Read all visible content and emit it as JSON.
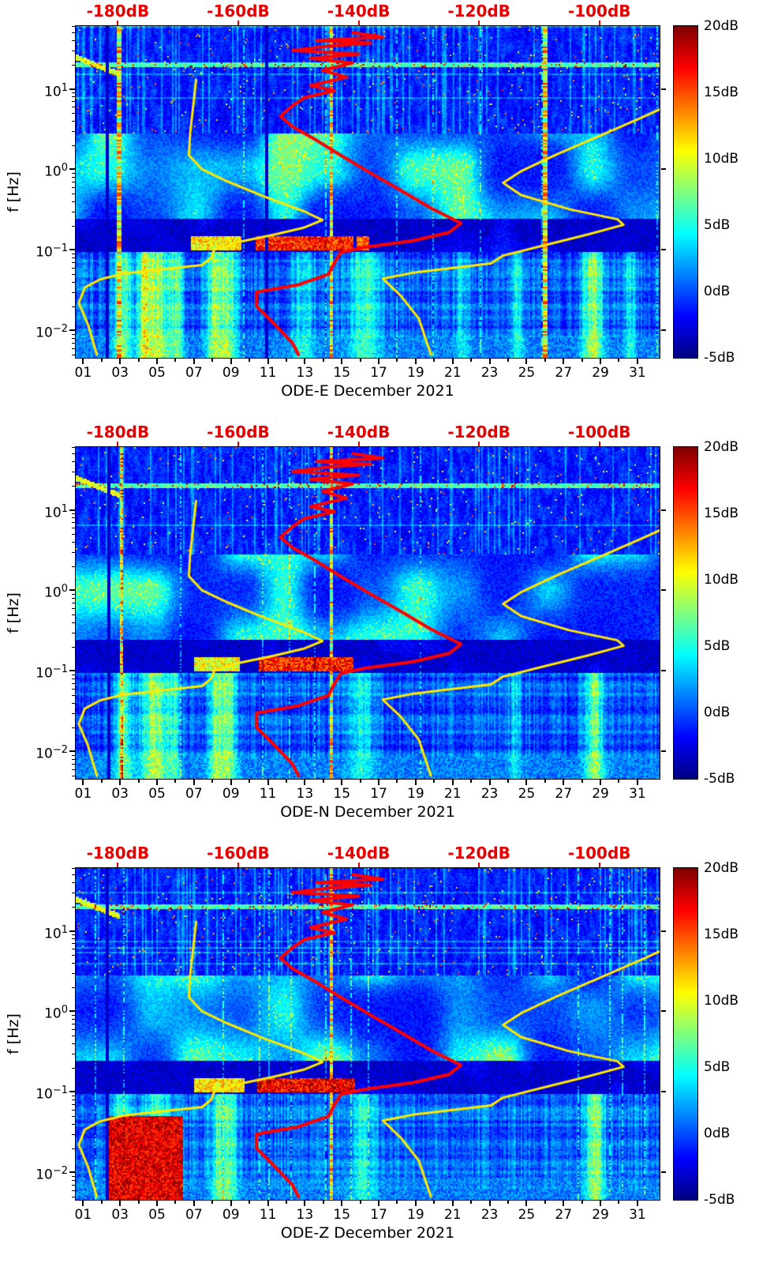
{
  "figure": {
    "ylabel": "f [Hz]",
    "y_ticks": [
      {
        "base": "10",
        "exp": "1",
        "f": 10
      },
      {
        "base": "10",
        "exp": "0",
        "f": 1
      },
      {
        "base": "10",
        "exp": "−1",
        "f": 0.1
      },
      {
        "base": "10",
        "exp": "−2",
        "f": 0.01
      }
    ],
    "top_axis": {
      "labels": [
        "-180dB",
        "-160dB",
        "-140dB",
        "-120dB",
        "-100dB"
      ],
      "values": [
        -180,
        -160,
        -140,
        -120,
        -100
      ],
      "color": "#e60000"
    },
    "colorbar": {
      "labels": [
        "20dB",
        "15dB",
        "10dB",
        "5dB",
        "0dB",
        "-5dB"
      ],
      "values": [
        20,
        15,
        10,
        5,
        0,
        -5
      ]
    },
    "axes": {
      "logf_top": 1.78,
      "logf_bottom": -2.34,
      "day_min": 0.6,
      "day_max": 32.2
    }
  },
  "panels": [
    {
      "name": "ODE-E",
      "xlabel": "ODE-E December 2021",
      "texture": {
        "seed": 11,
        "hot_cols": [
          [
            3.1,
            0.45,
            9
          ],
          [
            4.3,
            0.35,
            7
          ],
          [
            5.0,
            0.8,
            10
          ],
          [
            6.1,
            0.35,
            6
          ],
          [
            8.1,
            0.4,
            8
          ],
          [
            8.8,
            0.5,
            9
          ],
          [
            12.9,
            0.6,
            5
          ],
          [
            16.2,
            0.8,
            6
          ],
          [
            21.5,
            0.4,
            4
          ],
          [
            24.5,
            0.35,
            5
          ],
          [
            28.6,
            0.55,
            10
          ],
          [
            30.6,
            0.3,
            5
          ]
        ],
        "streaks": [
          [
            10.3,
            15.6,
            13
          ],
          [
            6.8,
            9.6,
            8
          ],
          [
            15.8,
            16.5,
            11
          ]
        ],
        "block": null,
        "bright_cols": [
          2.95,
          14.45,
          26.0
        ],
        "dark_cols": [
          2.3,
          10.9
        ]
      }
    },
    {
      "name": "ODE-N",
      "xlabel": "ODE-N December 2021",
      "texture": {
        "seed": 22,
        "hot_cols": [
          [
            3.2,
            0.45,
            8
          ],
          [
            4.9,
            0.8,
            10
          ],
          [
            6.0,
            0.3,
            5
          ],
          [
            8.2,
            0.45,
            8
          ],
          [
            8.9,
            0.45,
            8
          ],
          [
            16.1,
            0.7,
            5
          ],
          [
            24.4,
            0.3,
            4
          ],
          [
            28.7,
            0.55,
            9
          ]
        ],
        "streaks": [
          [
            10.5,
            15.6,
            13
          ],
          [
            7.0,
            9.5,
            7
          ]
        ],
        "block": null,
        "bright_cols": [
          3.05,
          14.45
        ],
        "dark_cols": [
          2.4
        ]
      }
    },
    {
      "name": "ODE-Z",
      "xlabel": "ODE-Z December 2021",
      "texture": {
        "seed": 33,
        "hot_cols": [
          [
            3.0,
            0.5,
            6
          ],
          [
            5.0,
            0.8,
            6
          ],
          [
            8.3,
            0.4,
            7
          ],
          [
            8.95,
            0.4,
            7
          ],
          [
            16.1,
            0.7,
            5
          ],
          [
            28.7,
            0.5,
            9
          ]
        ],
        "streaks": [
          [
            10.4,
            15.7,
            14
          ],
          [
            7.0,
            9.7,
            8
          ]
        ],
        "block": [
          2.4,
          6.4,
          -1.3
        ],
        "bright_cols": [
          14.45
        ],
        "dark_cols": [
          2.3
        ]
      }
    }
  ],
  "chart_data": {
    "type": "heatmap",
    "panels": [
      "ODE-E December 2021",
      "ODE-N December 2021",
      "ODE-Z December 2021"
    ],
    "x_axis": {
      "ticks": [
        "01",
        "03",
        "05",
        "07",
        "09",
        "11",
        "13",
        "15",
        "17",
        "19",
        "21",
        "23",
        "25",
        "27",
        "29",
        "31"
      ],
      "range_days": [
        1,
        31
      ]
    },
    "y_axis": {
      "label": "f [Hz]",
      "scale": "log",
      "range_hz": [
        0.005,
        60
      ],
      "ticks_hz": [
        10,
        1,
        0.1,
        0.01
      ]
    },
    "color_axis": {
      "range_db": [
        -5,
        20
      ],
      "ticks_db": [
        20,
        15,
        10,
        5,
        0,
        -5
      ],
      "colormap": "jet"
    },
    "top_axis": {
      "ticks_db": [
        -180,
        -160,
        -140,
        -120,
        -100
      ],
      "range_db": [
        -187,
        -90
      ],
      "color": "#e60000"
    },
    "overlay_series": [
      {
        "name": "yellow-reference-curve-low",
        "color": "#ffe800",
        "width": 3,
        "points_db_hz": [
          [
            -167,
            13
          ],
          [
            -167.5,
            6
          ],
          [
            -168,
            2.8
          ],
          [
            -168.2,
            1.5
          ],
          [
            -166,
            1.0
          ],
          [
            -162,
            0.72
          ],
          [
            -156,
            0.47
          ],
          [
            -149,
            0.3
          ],
          [
            -146,
            0.235
          ],
          [
            -149,
            0.19
          ],
          [
            -154,
            0.155
          ],
          [
            -160,
            0.125
          ],
          [
            -164,
            0.1
          ],
          [
            -164.5,
            0.08
          ],
          [
            -166,
            0.065
          ],
          [
            -173,
            0.057
          ],
          [
            -179,
            0.051
          ],
          [
            -183,
            0.043
          ],
          [
            -185.5,
            0.034
          ],
          [
            -186.5,
            0.022
          ],
          [
            -185,
            0.012
          ],
          [
            -183.5,
            0.005
          ]
        ]
      },
      {
        "name": "yellow-reference-curve-high",
        "color": "#ffe800",
        "width": 3,
        "points_db_hz": [
          [
            -88,
            6.5
          ],
          [
            -93,
            4.4
          ],
          [
            -100,
            2.6
          ],
          [
            -107,
            1.55
          ],
          [
            -113,
            0.95
          ],
          [
            -116,
            0.68
          ],
          [
            -113,
            0.48
          ],
          [
            -105,
            0.32
          ],
          [
            -97,
            0.24
          ],
          [
            -96,
            0.205
          ],
          [
            -102,
            0.155
          ],
          [
            -109,
            0.115
          ],
          [
            -116,
            0.085
          ],
          [
            -118,
            0.068
          ],
          [
            -131,
            0.052
          ],
          [
            -136,
            0.044
          ],
          [
            -133,
            0.027
          ],
          [
            -130,
            0.014
          ],
          [
            -128,
            0.005
          ]
        ]
      },
      {
        "name": "red-median-psd-curve",
        "color": "#ff0000",
        "width": 4,
        "points_db_hz": [
          [
            -141,
            50
          ],
          [
            -136,
            44
          ],
          [
            -147,
            40
          ],
          [
            -138,
            37
          ],
          [
            -145,
            34
          ],
          [
            -151,
            30
          ],
          [
            -140,
            27
          ],
          [
            -148,
            24
          ],
          [
            -141,
            21
          ],
          [
            -146,
            17
          ],
          [
            -142,
            14
          ],
          [
            -148,
            11
          ],
          [
            -144,
            9.5
          ],
          [
            -149,
            7.8
          ],
          [
            -151,
            6.2
          ],
          [
            -153,
            4.6
          ],
          [
            -151,
            3.4
          ],
          [
            -147,
            2.3
          ],
          [
            -143,
            1.5
          ],
          [
            -138,
            0.9
          ],
          [
            -133,
            0.55
          ],
          [
            -128,
            0.33
          ],
          [
            -123,
            0.215
          ],
          [
            -125,
            0.165
          ],
          [
            -131,
            0.13
          ],
          [
            -139,
            0.108
          ],
          [
            -143,
            0.093
          ],
          [
            -144,
            0.07
          ],
          [
            -145,
            0.05
          ],
          [
            -150,
            0.037
          ],
          [
            -157,
            0.03
          ],
          [
            -157,
            0.02
          ],
          [
            -154,
            0.012
          ],
          [
            -151,
            0.007
          ],
          [
            -150,
            0.005
          ]
        ]
      }
    ]
  }
}
